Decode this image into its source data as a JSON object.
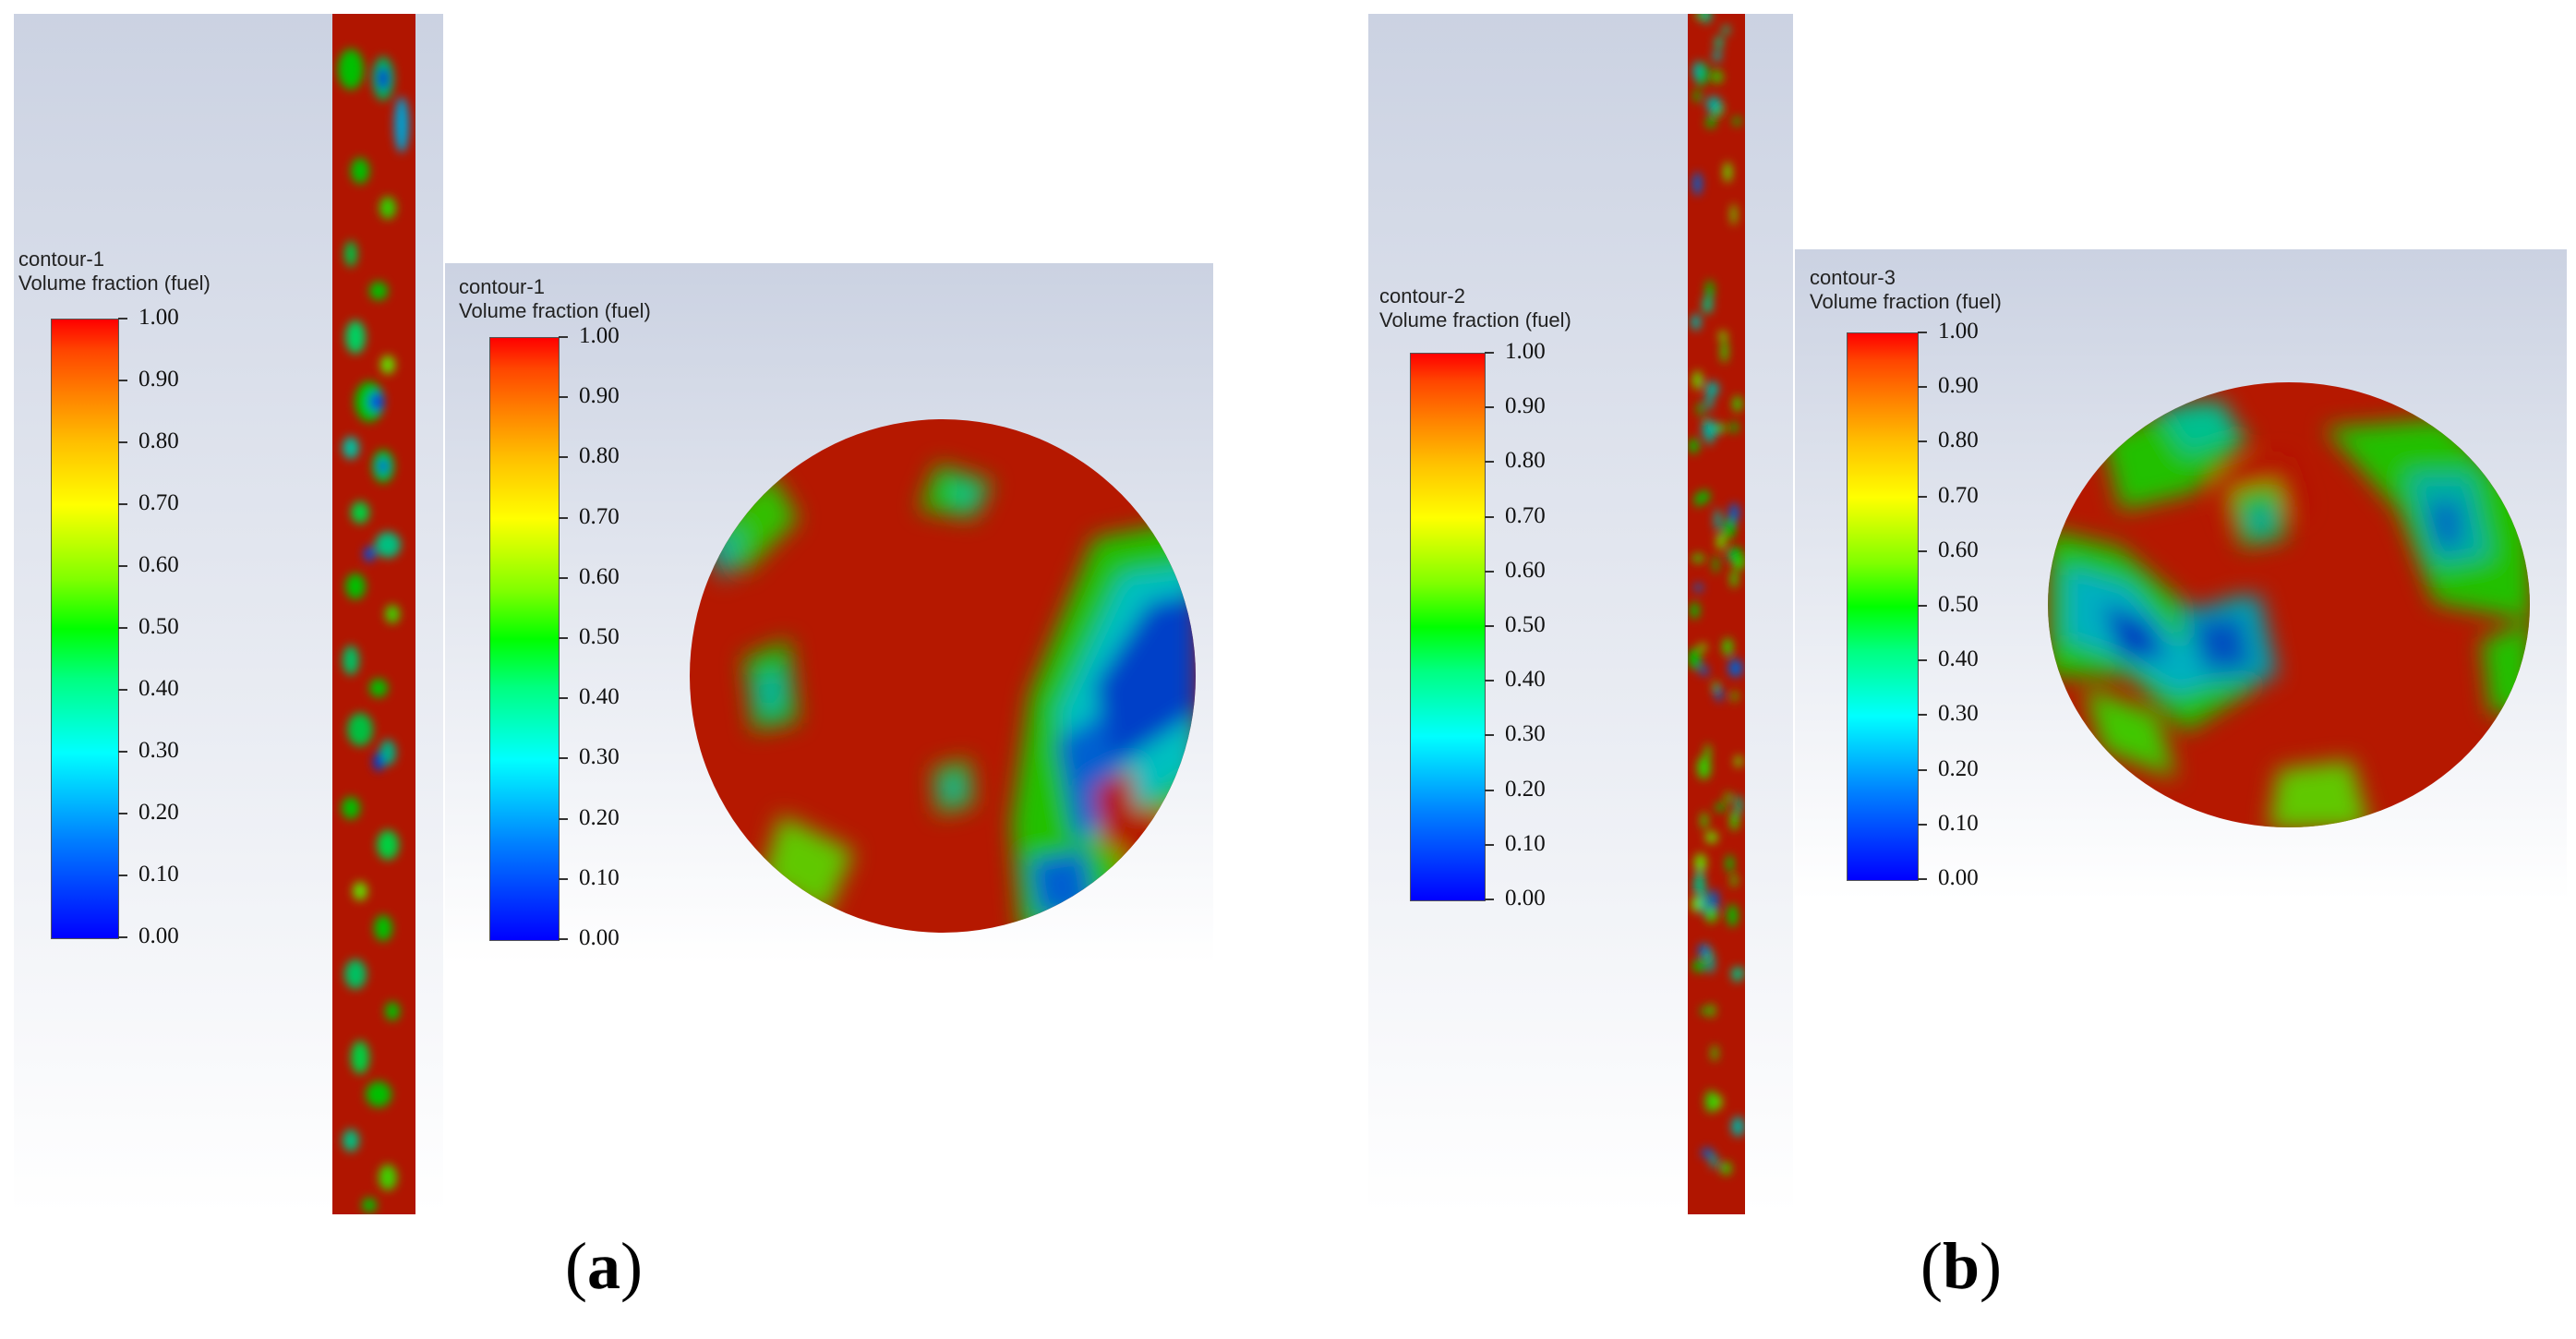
{
  "panels": [
    {
      "id": "a",
      "label_open": "(",
      "label_letter": "a",
      "label_close": ")",
      "pipe_legend": {
        "title_line1": "contour-1",
        "title_line2": "Volume fraction (fuel)",
        "ticks": [
          "1.00",
          "0.90",
          "0.80",
          "0.70",
          "0.60",
          "0.50",
          "0.40",
          "0.30",
          "0.20",
          "0.10",
          "0.00"
        ]
      },
      "section_legend": {
        "title_line1": "contour-1",
        "title_line2": "Volume fraction (fuel)",
        "ticks": [
          "1.00",
          "0.90",
          "0.80",
          "0.70",
          "0.60",
          "0.50",
          "0.40",
          "0.30",
          "0.20",
          "0.10",
          "0.00"
        ]
      }
    },
    {
      "id": "b",
      "label_open": "(",
      "label_letter": "b",
      "label_close": ")",
      "pipe_legend": {
        "title_line1": "contour-2",
        "title_line2": "Volume fraction (fuel)",
        "ticks": [
          "1.00",
          "0.90",
          "0.80",
          "0.70",
          "0.60",
          "0.50",
          "0.40",
          "0.30",
          "0.20",
          "0.10",
          "0.00"
        ]
      },
      "section_legend": {
        "title_line1": "contour-3",
        "title_line2": "Volume fraction (fuel)",
        "ticks": [
          "1.00",
          "0.90",
          "0.80",
          "0.70",
          "0.60",
          "0.50",
          "0.40",
          "0.30",
          "0.20",
          "0.10",
          "0.00"
        ]
      }
    }
  ],
  "colors": {
    "fuel_high": "#b41400",
    "fuel_mid": "#00c800",
    "fuel_low": "#0028c8",
    "panel_bg_top": "#cdd3e2",
    "panel_bg_bottom": "#ffffff"
  }
}
